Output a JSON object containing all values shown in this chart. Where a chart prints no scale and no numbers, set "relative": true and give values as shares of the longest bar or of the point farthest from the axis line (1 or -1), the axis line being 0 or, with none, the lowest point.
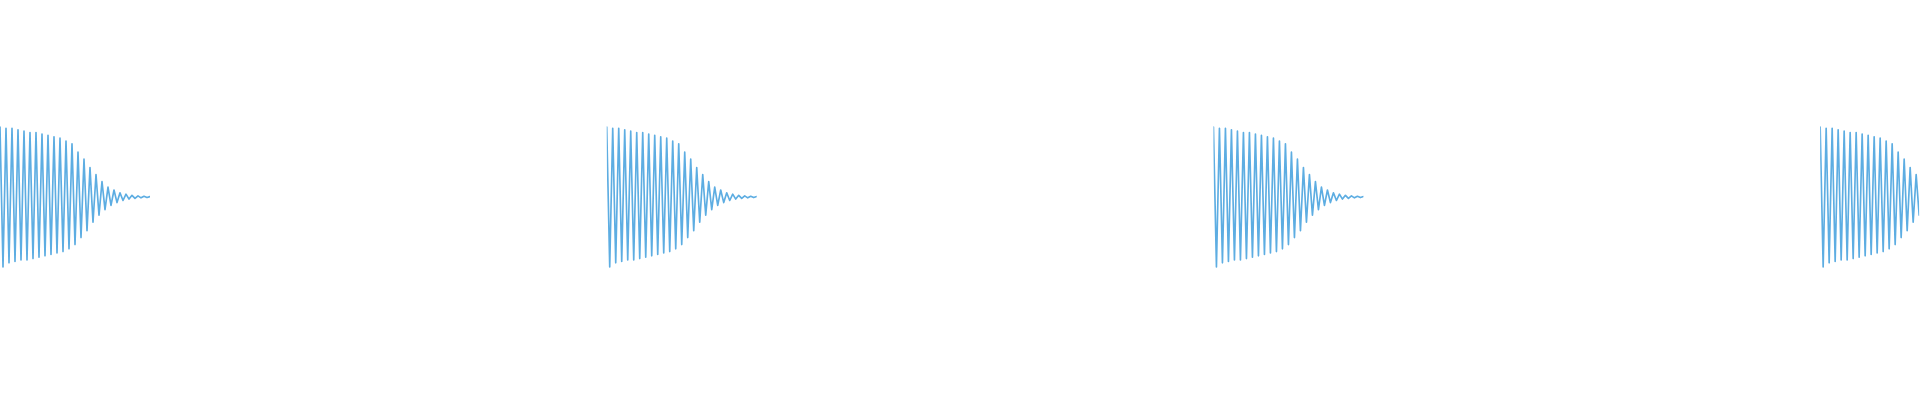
{
  "chart_data": [
    {
      "type": "line",
      "relative": true,
      "categories": [
        null,
        null,
        null,
        null,
        null,
        null,
        null,
        null,
        null,
        null,
        null,
        null,
        null,
        null,
        null,
        null,
        null,
        null,
        null,
        null,
        null,
        null,
        null,
        null,
        null,
        null,
        null,
        null,
        null,
        null,
        null,
        null,
        null,
        null,
        null,
        null,
        null,
        null,
        null,
        null,
        null,
        null,
        null,
        null,
        null,
        null,
        null,
        null,
        null,
        null,
        null
      ],
      "series": [
        {
          "color": "#5dade2",
          "values": [
            1.0,
            0.0,
            0.99,
            0.03,
            0.99,
            0.04,
            0.98,
            0.05,
            0.97,
            0.05,
            0.96,
            0.06,
            0.96,
            0.07,
            0.95,
            0.08,
            0.94,
            0.09,
            0.93,
            0.1,
            0.92,
            0.11,
            0.9,
            0.13,
            0.88,
            0.16,
            0.82,
            0.21,
            0.77,
            0.26,
            0.71,
            0.32,
            0.66,
            0.37,
            0.61,
            0.41,
            0.57,
            0.44,
            0.55,
            0.46,
            0.53,
            0.475,
            0.52,
            0.485,
            0.512,
            0.49,
            0.508,
            0.494,
            0.505,
            0.496,
            0.503
          ]
        }
      ]
    },
    {
      "type": "line",
      "relative": true,
      "categories": [
        null,
        null,
        null,
        null,
        null,
        null,
        null,
        null,
        null,
        null,
        null,
        null,
        null,
        null,
        null,
        null,
        null,
        null,
        null,
        null,
        null,
        null,
        null,
        null,
        null,
        null,
        null,
        null,
        null,
        null,
        null,
        null,
        null,
        null,
        null,
        null,
        null,
        null,
        null,
        null,
        null,
        null,
        null,
        null,
        null,
        null,
        null,
        null,
        null,
        null,
        null
      ],
      "series": [
        {
          "color": "#5dade2",
          "values": [
            1.0,
            0.0,
            0.99,
            0.03,
            0.99,
            0.04,
            0.98,
            0.05,
            0.97,
            0.05,
            0.96,
            0.06,
            0.96,
            0.07,
            0.95,
            0.08,
            0.94,
            0.09,
            0.93,
            0.1,
            0.92,
            0.11,
            0.9,
            0.13,
            0.88,
            0.16,
            0.82,
            0.21,
            0.77,
            0.26,
            0.71,
            0.32,
            0.66,
            0.37,
            0.61,
            0.41,
            0.57,
            0.44,
            0.55,
            0.46,
            0.53,
            0.475,
            0.52,
            0.485,
            0.512,
            0.49,
            0.508,
            0.494,
            0.505,
            0.496,
            0.503
          ]
        }
      ]
    },
    {
      "type": "line",
      "relative": true,
      "categories": [
        null,
        null,
        null,
        null,
        null,
        null,
        null,
        null,
        null,
        null,
        null,
        null,
        null,
        null,
        null,
        null,
        null,
        null,
        null,
        null,
        null,
        null,
        null,
        null,
        null,
        null,
        null,
        null,
        null,
        null,
        null,
        null,
        null,
        null,
        null,
        null,
        null,
        null,
        null,
        null,
        null,
        null,
        null,
        null,
        null,
        null,
        null,
        null,
        null,
        null,
        null
      ],
      "series": [
        {
          "color": "#5dade2",
          "values": [
            1.0,
            0.0,
            0.99,
            0.03,
            0.99,
            0.04,
            0.98,
            0.05,
            0.97,
            0.05,
            0.96,
            0.06,
            0.96,
            0.07,
            0.95,
            0.08,
            0.94,
            0.09,
            0.93,
            0.1,
            0.92,
            0.11,
            0.9,
            0.13,
            0.88,
            0.16,
            0.82,
            0.21,
            0.77,
            0.26,
            0.71,
            0.32,
            0.66,
            0.37,
            0.61,
            0.41,
            0.57,
            0.44,
            0.55,
            0.46,
            0.53,
            0.475,
            0.52,
            0.485,
            0.512,
            0.49,
            0.508,
            0.494,
            0.505,
            0.496,
            0.503
          ]
        }
      ]
    },
    {
      "type": "line",
      "relative": true,
      "categories": [
        null,
        null,
        null,
        null,
        null,
        null,
        null,
        null,
        null,
        null,
        null,
        null,
        null,
        null,
        null,
        null,
        null,
        null,
        null,
        null,
        null,
        null,
        null,
        null,
        null,
        null,
        null,
        null,
        null,
        null,
        null,
        null,
        null,
        null
      ],
      "series": [
        {
          "color": "#5dade2",
          "values": [
            1.0,
            0.0,
            0.99,
            0.03,
            0.99,
            0.04,
            0.98,
            0.05,
            0.97,
            0.05,
            0.96,
            0.06,
            0.96,
            0.07,
            0.95,
            0.08,
            0.94,
            0.09,
            0.93,
            0.1,
            0.92,
            0.11,
            0.9,
            0.13,
            0.88,
            0.16,
            0.82,
            0.21,
            0.77,
            0.26,
            0.71,
            0.32,
            0.66,
            0.37
          ]
        }
      ]
    }
  ]
}
